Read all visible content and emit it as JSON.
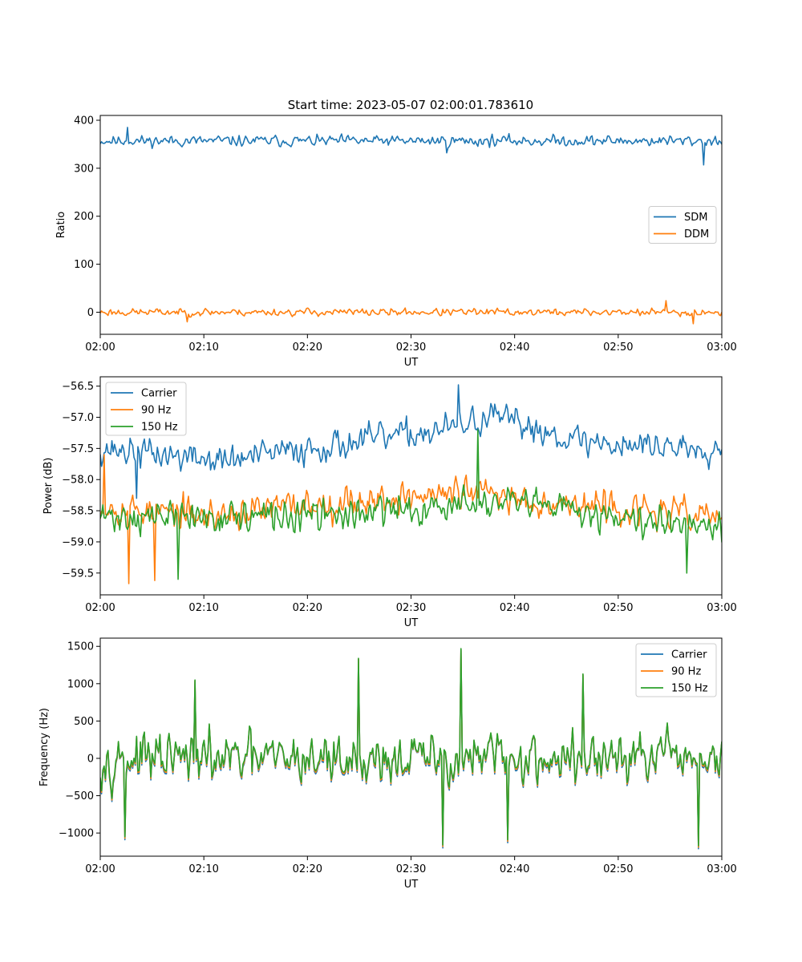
{
  "figure": {
    "title": "Start time: 2023-05-07 02:00:01.783610"
  },
  "chart_data": [
    {
      "type": "line",
      "id": "ratio",
      "title": "Start time: 2023-05-07 02:00:01.783610",
      "xlabel": "UT",
      "ylabel": "Ratio",
      "xlim": [
        0,
        60
      ],
      "ylim": [
        -46,
        410
      ],
      "xticks": [
        0,
        10,
        20,
        30,
        40,
        50,
        60
      ],
      "xtick_labels": [
        "02:00",
        "02:10",
        "02:20",
        "02:30",
        "02:40",
        "02:50",
        "03:00"
      ],
      "yticks": [
        0,
        100,
        200,
        300,
        400
      ],
      "ytick_labels": [
        "0",
        "100",
        "200",
        "300",
        "400"
      ],
      "legend": "center-right",
      "grid": false,
      "series": [
        {
          "name": "SDM",
          "color": "#1f77b4",
          "mean": 357,
          "amp": 13,
          "seed": 11,
          "spikes": [
            [
              58.3,
              307
            ],
            [
              2.6,
              385
            ],
            [
              33.4,
              332
            ]
          ]
        },
        {
          "name": "DDM",
          "color": "#ff7f0e",
          "mean": 0,
          "amp": 9,
          "seed": 23,
          "spikes": [
            [
              54.6,
              24
            ],
            [
              57.2,
              -24
            ],
            [
              8.4,
              -20
            ]
          ]
        }
      ]
    },
    {
      "type": "line",
      "id": "power",
      "xlabel": "UT",
      "ylabel": "Power (dB)",
      "xlim": [
        0,
        60
      ],
      "ylim": [
        -59.85,
        -56.35
      ],
      "xticks": [
        0,
        10,
        20,
        30,
        40,
        50,
        60
      ],
      "xtick_labels": [
        "02:00",
        "02:10",
        "02:20",
        "02:30",
        "02:40",
        "02:50",
        "03:00"
      ],
      "yticks": [
        -59.5,
        -59.0,
        -58.5,
        -58.0,
        -57.5,
        -57.0,
        -56.5
      ],
      "ytick_labels": [
        "−59.5",
        "−59.0",
        "−58.5",
        "−58.0",
        "−57.5",
        "−57.0",
        "−56.5"
      ],
      "legend": "upper-left",
      "grid": false,
      "series": [
        {
          "name": "Carrier",
          "color": "#1f77b4",
          "trend": [
            [
              0,
              -57.5
            ],
            [
              12,
              -57.7
            ],
            [
              20,
              -57.5
            ],
            [
              33,
              -57.2
            ],
            [
              38,
              -57.0
            ],
            [
              47,
              -57.4
            ],
            [
              60,
              -57.5
            ]
          ],
          "amp": 0.28,
          "seed": 37,
          "spikes": [
            [
              34.6,
              -56.48
            ],
            [
              3.5,
              -58.3
            ]
          ]
        },
        {
          "name": "90 Hz",
          "color": "#ff7f0e",
          "trend": [
            [
              0,
              -58.4
            ],
            [
              10,
              -58.6
            ],
            [
              20,
              -58.4
            ],
            [
              36,
              -58.2
            ],
            [
              40,
              -58.3
            ],
            [
              52,
              -58.5
            ],
            [
              60,
              -58.6
            ]
          ],
          "amp": 0.3,
          "seed": 53,
          "spikes": [
            [
              2.7,
              -59.67
            ],
            [
              5.3,
              -59.62
            ],
            [
              0.4,
              -57.6
            ]
          ]
        },
        {
          "name": "150 Hz",
          "color": "#2ca02c",
          "trend": [
            [
              0,
              -58.6
            ],
            [
              10,
              -58.6
            ],
            [
              20,
              -58.6
            ],
            [
              36,
              -58.4
            ],
            [
              40,
              -58.4
            ],
            [
              52,
              -58.6
            ],
            [
              60,
              -58.7
            ]
          ],
          "amp": 0.3,
          "seed": 71,
          "spikes": [
            [
              36.5,
              -57.2
            ],
            [
              7.5,
              -59.6
            ],
            [
              56.6,
              -59.5
            ]
          ]
        }
      ]
    },
    {
      "type": "line",
      "id": "frequency",
      "xlabel": "UT",
      "ylabel": "Frequency (Hz)",
      "xlim": [
        0,
        60
      ],
      "ylim": [
        -1310,
        1610
      ],
      "xticks": [
        0,
        10,
        20,
        30,
        40,
        50,
        60
      ],
      "xtick_labels": [
        "02:00",
        "02:10",
        "02:20",
        "02:30",
        "02:40",
        "02:50",
        "03:00"
      ],
      "yticks": [
        -1000,
        -500,
        0,
        500,
        1000,
        1500
      ],
      "ytick_labels": [
        "−1000",
        "−500",
        "0",
        "500",
        "1000",
        "1500"
      ],
      "legend": "upper-right",
      "grid": false,
      "base": {
        "mean": 0,
        "amp": 380,
        "seed": 97,
        "spikes": [
          [
            34.8,
            1470
          ],
          [
            24.9,
            1340
          ],
          [
            33.1,
            -1160
          ],
          [
            57.8,
            -1170
          ],
          [
            2.4,
            -1050
          ],
          [
            39.3,
            -1090
          ],
          [
            46.6,
            1130
          ],
          [
            9.2,
            1050
          ]
        ]
      },
      "series": [
        {
          "name": "Carrier",
          "color": "#1f77b4",
          "offset": -40
        },
        {
          "name": "90 Hz",
          "color": "#ff7f0e",
          "offset": -20
        },
        {
          "name": "150 Hz",
          "color": "#2ca02c",
          "offset": 0
        }
      ]
    }
  ]
}
